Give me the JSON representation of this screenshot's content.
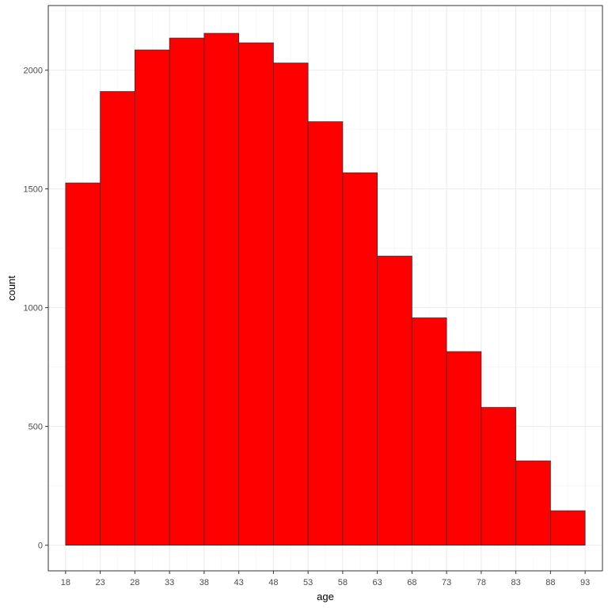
{
  "chart_data": {
    "type": "bar",
    "title": "",
    "xlabel": "age",
    "ylabel": "count",
    "x_ticks": [
      "18",
      "23",
      "28",
      "33",
      "38",
      "43",
      "48",
      "53",
      "58",
      "63",
      "68",
      "73",
      "78",
      "83",
      "88",
      "93"
    ],
    "y_ticks": [
      "0",
      "500",
      "1000",
      "1500",
      "2000"
    ],
    "xlim": [
      15.5,
      95.5
    ],
    "ylim": [
      -108,
      2272
    ],
    "bin_edges": [
      18,
      23,
      28,
      33,
      38,
      43,
      48,
      53,
      58,
      63,
      68,
      73,
      78,
      83,
      88,
      93
    ],
    "values": [
      1525,
      1910,
      2085,
      2135,
      2155,
      2115,
      2030,
      1783,
      1568,
      1217,
      957,
      815,
      580,
      355,
      145
    ],
    "grid": true,
    "legend": "none",
    "colors": {
      "bar_fill": "#ff0000",
      "bar_stroke": "#333333",
      "panel_border": "#333333",
      "grid_major": "#ebebeb",
      "grid_minor": "#f5f5f5",
      "background": "#ffffff"
    }
  }
}
